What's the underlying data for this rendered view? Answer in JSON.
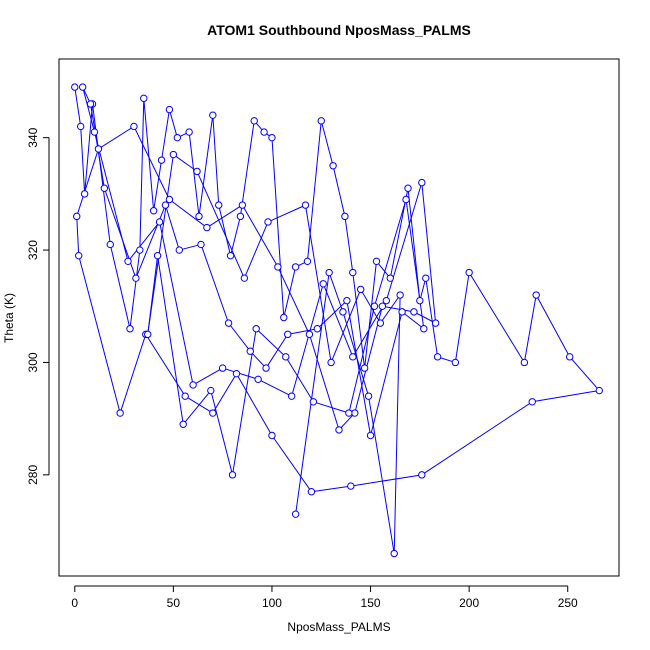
{
  "chart_data": {
    "type": "line",
    "title": "ATOM1 Southbound NposMass_PALMS",
    "xlabel": "NposMass_PALMS",
    "ylabel": "Theta (K)",
    "xlim": [
      -8,
      276
    ],
    "ylim": [
      262,
      354
    ],
    "xticks": [
      0,
      50,
      100,
      150,
      200,
      250
    ],
    "yticks": [
      280,
      300,
      320,
      340
    ],
    "grid": false,
    "markers": "open-circle",
    "color": "#0000ff",
    "series": [
      {
        "x": [
          0,
          3,
          5,
          9,
          18,
          28,
          33,
          35,
          40,
          44,
          48,
          52,
          58,
          63,
          70,
          73,
          79,
          84,
          91,
          96,
          100,
          106,
          112,
          118,
          125,
          131,
          137,
          141,
          147,
          153,
          160,
          169,
          175,
          178,
          184,
          193,
          200,
          228,
          234,
          251,
          266,
          232,
          176,
          140,
          120,
          100,
          82,
          70,
          56,
          36,
          23,
          2,
          1,
          12,
          30,
          48,
          67,
          85,
          103,
          119,
          134,
          142,
          156,
          172,
          183,
          176,
          158,
          141,
          126,
          110,
          93,
          75,
          60,
          43,
          27,
          10,
          4,
          8,
          15,
          31,
          46,
          53,
          64,
          78,
          89,
          97,
          108,
          123,
          138,
          150,
          166,
          177,
          168,
          152,
          139,
          121,
          107,
          92,
          80,
          69,
          55,
          42,
          37,
          50,
          62,
          86,
          98,
          117,
          130,
          145,
          155,
          165,
          162,
          149,
          136,
          129,
          112
        ],
        "y": [
          349,
          342,
          330,
          346,
          321,
          306,
          320,
          347,
          327,
          336,
          345,
          340,
          341,
          326,
          344,
          328,
          319,
          326,
          343,
          341,
          340,
          308,
          317,
          318,
          343,
          335,
          326,
          316,
          299,
          318,
          315,
          331,
          311,
          315,
          301,
          300,
          316,
          300,
          312,
          301,
          295,
          293,
          280,
          278,
          277,
          287,
          298,
          291,
          294,
          305,
          291,
          319,
          326,
          338,
          342,
          329,
          324,
          328,
          317,
          305,
          288,
          291,
          310,
          309,
          307,
          332,
          311,
          301,
          314,
          294,
          297,
          299,
          296,
          325,
          318,
          341,
          349,
          346,
          331,
          315,
          328,
          320,
          321,
          307,
          302,
          299,
          305,
          306,
          311,
          287,
          309,
          306,
          329,
          310,
          291,
          293,
          301,
          306,
          280,
          295,
          289,
          319,
          305,
          337,
          334,
          315,
          325,
          328,
          300,
          313,
          307,
          312,
          266,
          294,
          309,
          316,
          273
        ]
      }
    ]
  }
}
